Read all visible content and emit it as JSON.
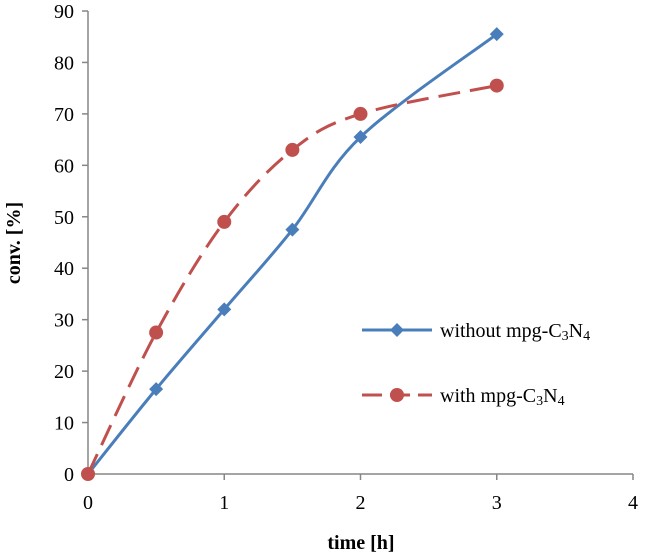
{
  "chart_data": {
    "type": "line",
    "title": "",
    "xlabel": "time [h]",
    "ylabel": "conv. [%]",
    "xlim": [
      0,
      4
    ],
    "ylim": [
      0,
      90
    ],
    "xticks": [
      "0",
      "1",
      "2",
      "3",
      "4"
    ],
    "yticks": [
      "0",
      "10",
      "20",
      "30",
      "40",
      "50",
      "60",
      "70",
      "80",
      "90"
    ],
    "grid": false,
    "legend_position": "right",
    "series": [
      {
        "name": "without mpg-C3N4",
        "label_main": "without mpg-C",
        "label_sub1": "3",
        "label_mid": "N",
        "label_sub2": "4",
        "color": "#4a7ebb",
        "line_style": "solid",
        "marker": "diamond",
        "x": [
          0,
          0.5,
          1,
          1.5,
          2,
          3
        ],
        "y": [
          0,
          16.5,
          32,
          47.5,
          65.5,
          85.5
        ]
      },
      {
        "name": "with mpg-C3N4",
        "label_main": "with mpg-C",
        "label_sub1": "3",
        "label_mid": "N",
        "label_sub2": "4",
        "color": "#c0504d",
        "line_style": "dashed",
        "marker": "circle",
        "x": [
          0,
          0.5,
          1,
          1.5,
          2,
          3
        ],
        "y": [
          0,
          27.5,
          49,
          63,
          70,
          75.5
        ]
      }
    ]
  }
}
